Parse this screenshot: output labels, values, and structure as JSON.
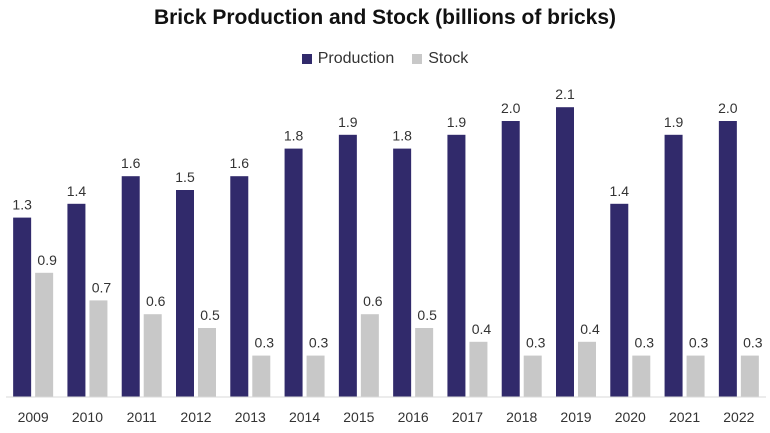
{
  "chart_data": {
    "type": "bar",
    "title": "Brick Production and Stock (billions of bricks)",
    "xlabel": "",
    "ylabel": "",
    "ylim": [
      0,
      2.2
    ],
    "grid": false,
    "legend_position": "top-center",
    "categories": [
      "2009",
      "2010",
      "2011",
      "2012",
      "2013",
      "2014",
      "2015",
      "2016",
      "2017",
      "2018",
      "2019",
      "2020",
      "2021",
      "2022"
    ],
    "series": [
      {
        "name": "Production",
        "color": "#312a6b",
        "values": [
          1.3,
          1.4,
          1.6,
          1.5,
          1.6,
          1.8,
          1.9,
          1.8,
          1.9,
          2.0,
          2.1,
          1.4,
          1.9,
          2.0
        ]
      },
      {
        "name": "Stock",
        "color": "#c8c8c8",
        "values": [
          0.9,
          0.7,
          0.6,
          0.5,
          0.3,
          0.3,
          0.6,
          0.5,
          0.4,
          0.3,
          0.4,
          0.3,
          0.3,
          0.3
        ]
      }
    ]
  }
}
